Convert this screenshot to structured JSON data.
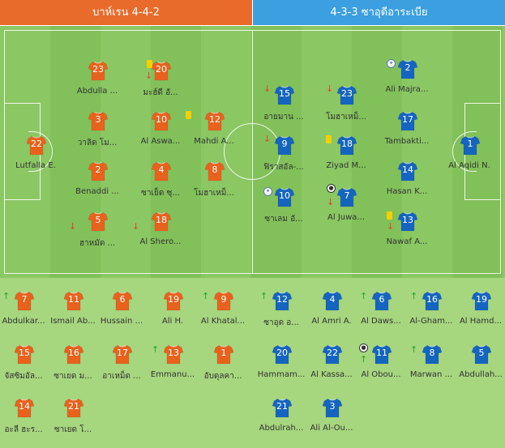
{
  "header": {
    "home": "บาห์เรน 4-4-2",
    "away": "4-3-3 ซาอุดีอาระเบีย"
  },
  "colors": {
    "home": "#e8621e",
    "away": "#1565c0"
  },
  "home_xi": [
    {
      "n": "23",
      "name": "Abdulla ..."
    },
    {
      "n": "20",
      "name": "มะฮ์ดี อั..."
    },
    {
      "n": "3",
      "name": "วาลิด โม..."
    },
    {
      "n": "10",
      "name": "Al Aswa..."
    },
    {
      "n": "12",
      "name": "Mahdi A..."
    },
    {
      "n": "22",
      "name": "Lutfalla E."
    },
    {
      "n": "2",
      "name": "Benaddi ..."
    },
    {
      "n": "4",
      "name": "ซาเย็ด ซุ..."
    },
    {
      "n": "8",
      "name": "โมฮาเหม็..."
    },
    {
      "n": "5",
      "name": "ฮาหมัด ..."
    },
    {
      "n": "18",
      "name": "Al Shero..."
    }
  ],
  "away_xi": [
    {
      "n": "2",
      "name": "Ali Majra..."
    },
    {
      "n": "15",
      "name": "อายมาน ..."
    },
    {
      "n": "23",
      "name": "โมฮาเหม็..."
    },
    {
      "n": "17",
      "name": "Tambakti..."
    },
    {
      "n": "9",
      "name": "ฟิราสอัล-..."
    },
    {
      "n": "18",
      "name": "Ziyad M..."
    },
    {
      "n": "1",
      "name": "Al Aqidi N."
    },
    {
      "n": "14",
      "name": "Hasan K..."
    },
    {
      "n": "10",
      "name": "ซาเลม อั..."
    },
    {
      "n": "7",
      "name": "Al Juwa..."
    },
    {
      "n": "13",
      "name": "Nawaf A..."
    }
  ],
  "home_bench": [
    {
      "n": "7",
      "name": "Abdulkar..."
    },
    {
      "n": "11",
      "name": "Ismail Ab..."
    },
    {
      "n": "6",
      "name": "Hussain ..."
    },
    {
      "n": "19",
      "name": "Ali H."
    },
    {
      "n": "9",
      "name": "Al Khatal..."
    },
    {
      "n": "15",
      "name": "จัสซิมอัล..."
    },
    {
      "n": "16",
      "name": "ซาเยด ม..."
    },
    {
      "n": "17",
      "name": "อาเหม็ด ..."
    },
    {
      "n": "13",
      "name": "Emmanu..."
    },
    {
      "n": "1",
      "name": "อับดุลคา..."
    },
    {
      "n": "14",
      "name": "อะลี ฮะร..."
    },
    {
      "n": "21",
      "name": "ซาเยด โ..."
    }
  ],
  "away_bench": [
    {
      "n": "12",
      "name": "ซาอุด อ..."
    },
    {
      "n": "4",
      "name": "Al Amri A."
    },
    {
      "n": "6",
      "name": "Al Daws..."
    },
    {
      "n": "16",
      "name": "Al-Gham..."
    },
    {
      "n": "19",
      "name": "Al Hamd..."
    },
    {
      "n": "20",
      "name": "Hammam..."
    },
    {
      "n": "22",
      "name": "Al Kassa..."
    },
    {
      "n": "11",
      "name": "Al Obou..."
    },
    {
      "n": "8",
      "name": "Marwan ..."
    },
    {
      "n": "5",
      "name": "Abdullah..."
    },
    {
      "n": "21",
      "name": "Abdulrah..."
    },
    {
      "n": "3",
      "name": "Ali Al-Ou..."
    }
  ],
  "icons": {
    "sub_out": "arrow-down-icon",
    "sub_in": "arrow-up-icon",
    "yellow": "yellow-card-icon",
    "goal": "ball-icon",
    "captain": "captain-icon"
  }
}
